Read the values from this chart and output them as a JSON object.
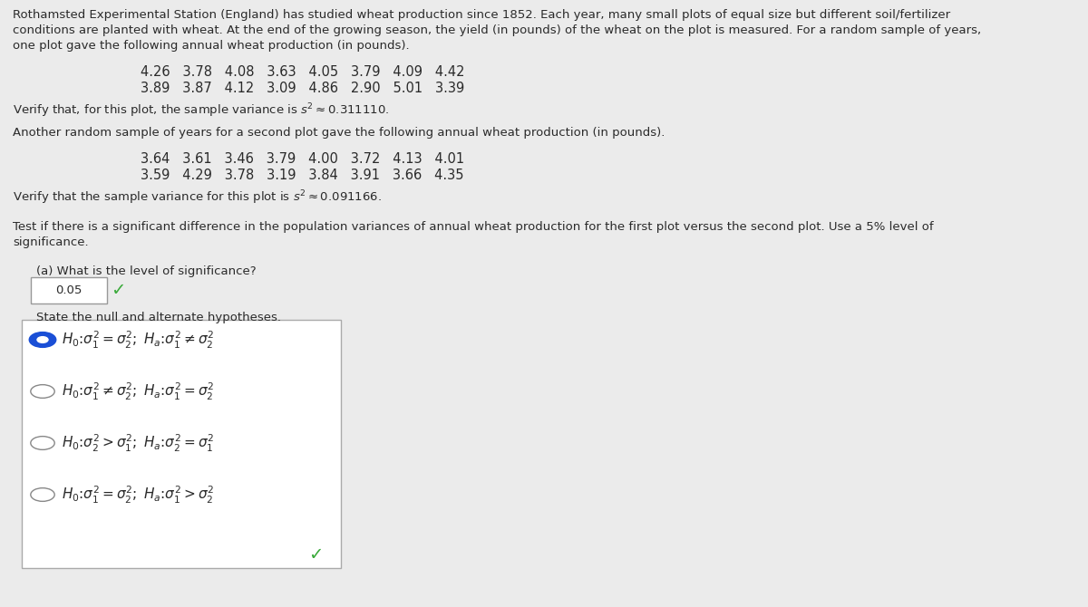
{
  "bg_color": "#ebebeb",
  "text_color": "#2a2a2a",
  "para1_line1": "Rothamsted Experimental Station (England) has studied wheat production since 1852. Each year, many small plots of equal size but different soil/fertilizer",
  "para1_line2": "conditions are planted with wheat. At the end of the growing season, the yield (in pounds) of the wheat on the plot is measured. For a random sample of years,",
  "para1_line3": "one plot gave the following annual wheat production (in pounds).",
  "data1a": "4.26   3.78   4.08   3.63   4.05   3.79   4.09   4.42",
  "data1b": "3.89   3.87   4.12   3.09   4.86   2.90   5.01   3.39",
  "verify1_pre": "Verify that, for this plot, the sample variance is s",
  "verify1_post": " ≈ 0.311110.",
  "para2": "Another random sample of years for a second plot gave the following annual wheat production (in pounds).",
  "data2a": "3.64   3.61   3.46   3.79   4.00   3.72   4.13   4.01",
  "data2b": "3.59   4.29   3.78   3.19   3.84   3.91   3.66   4.35",
  "verify2_pre": "Verify that the sample variance for this plot is s",
  "verify2_post": " ≈ 0.091166.",
  "para3_line1": "Test if there is a significant difference in the population variances of annual wheat production for the first plot versus the second plot. Use a 5% level of",
  "para3_line2": "significance.",
  "part_a_label": "(a) What is the level of significance?",
  "answer_a": "0.05",
  "state_hyp": "State the null and alternate hypotheses.",
  "options": [
    "H_0: \\sigma_1^2 = \\sigma_2^2;\\; H_a: \\sigma_1^2 \\neq \\sigma_2^2",
    "H_0: \\sigma_1^2 \\neq \\sigma_2^2;\\; H_a: \\sigma_1^2 = \\sigma_2^2",
    "H_0: \\sigma_2^2 > \\sigma_1^2;\\; H_a: \\sigma_2^2 = \\sigma_1^2",
    "H_0: \\sigma_1^2 = \\sigma_2^2;\\; H_a: \\sigma_1^2 > \\sigma_2^2"
  ],
  "selected_option": 0,
  "checkmark_color": "#3aaa3a",
  "radio_selected_color": "#1a4fd6",
  "radio_unselected_color": "#888888",
  "box_edge_color": "#aaaaaa",
  "font_size_main": 9.5,
  "font_size_data": 10.5,
  "font_size_hyp": 11.0
}
